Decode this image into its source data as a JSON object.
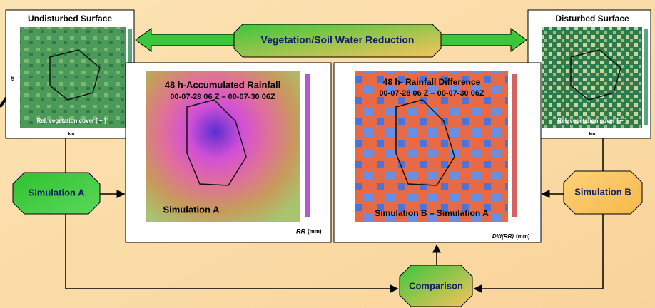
{
  "panels": {
    "undisturbed": {
      "title": "Undisturbed Surface",
      "caption": "Rel. vegetation cover [ – ]",
      "axis_label": "km"
    },
    "disturbed": {
      "title": "Disturbed Surface",
      "caption": "Rel. vegetation cover [ – ]",
      "axis_label": "km"
    }
  },
  "process": "Vegetation/Soil Water Reduction",
  "maps": [
    {
      "title": "48 h-Accumulated Rainfall",
      "period": "00-07-28 06 Z –  00-07-30 06Z",
      "label": "Simulation A",
      "unit_symbol": "RR",
      "unit": "(mm)"
    },
    {
      "title": "48 h- Rainfall Difference",
      "period": "00-07-28 06 Z –  00-07-30 06Z",
      "label": "Simulation B – Simulation A",
      "unit_symbol": "Diff(RR)",
      "unit": "(mm)"
    }
  ],
  "nodes": {
    "simulation_a": "Simulation A",
    "simulation_b": "Simulation B",
    "comparison": "Comparison"
  }
}
